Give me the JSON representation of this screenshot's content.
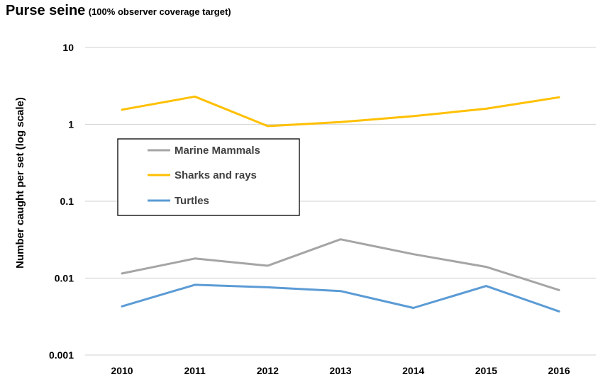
{
  "chart_data": {
    "type": "line",
    "title": "Purse seine",
    "subtitle": "(100% observer coverage target)",
    "ylabel": "Number caught per set  (log scale)",
    "xlabel": "",
    "yscale": "log",
    "ylim": [
      0.001,
      10
    ],
    "yticks": [
      10,
      1,
      0.1,
      0.01,
      0.001
    ],
    "ytick_labels": [
      "10",
      "1",
      "0.1",
      "0.01",
      "0.001"
    ],
    "categories": [
      "2010",
      "2011",
      "2012",
      "2013",
      "2014",
      "2015",
      "2016"
    ],
    "grid": true,
    "legend_position": "left-middle",
    "series": [
      {
        "name": "Marine Mammals",
        "color": "#a5a5a5",
        "values": [
          0.0115,
          0.018,
          0.0145,
          0.032,
          0.0205,
          0.014,
          0.007
        ]
      },
      {
        "name": "Sharks and rays",
        "color": "#ffc000",
        "values": [
          1.55,
          2.3,
          0.95,
          1.07,
          1.28,
          1.6,
          2.25
        ]
      },
      {
        "name": "Turtles",
        "color": "#5b9bd5",
        "values": [
          0.0043,
          0.0082,
          0.0076,
          0.0068,
          0.0041,
          0.0079,
          0.0037
        ]
      }
    ]
  }
}
